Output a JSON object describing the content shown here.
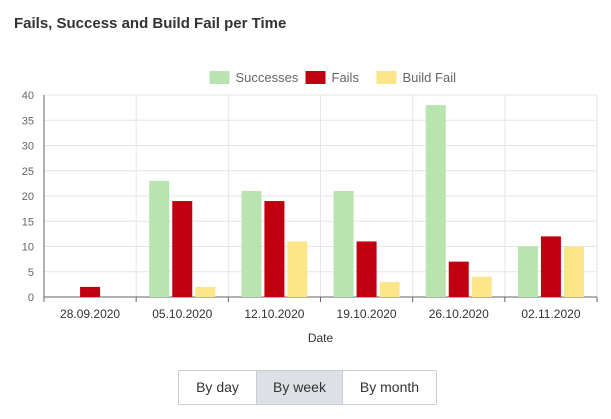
{
  "title": "Fails, Success and Build Fail per Time",
  "chart_data": {
    "type": "bar",
    "categories": [
      "28.09.2020",
      "05.10.2020",
      "12.10.2020",
      "19.10.2020",
      "26.10.2020",
      "02.11.2020"
    ],
    "series": [
      {
        "name": "Successes",
        "color": "#b8e4b0",
        "values": [
          0,
          23,
          21,
          21,
          38,
          10
        ]
      },
      {
        "name": "Fails",
        "color": "#c1000f",
        "values": [
          2,
          19,
          19,
          11,
          7,
          12
        ]
      },
      {
        "name": "Build Fail",
        "color": "#fde58a",
        "values": [
          0,
          2,
          11,
          3,
          4,
          10
        ]
      }
    ],
    "xlabel": "Date",
    "ylabel": "",
    "ylim": [
      0,
      40
    ],
    "yticks": [
      "0",
      "5",
      "10",
      "15",
      "20",
      "25",
      "30",
      "35",
      "40"
    ],
    "grid": true,
    "legend": "top-center"
  },
  "controls": {
    "by_day": "By day",
    "by_week": "By week",
    "by_month": "By month",
    "active": "By week"
  }
}
